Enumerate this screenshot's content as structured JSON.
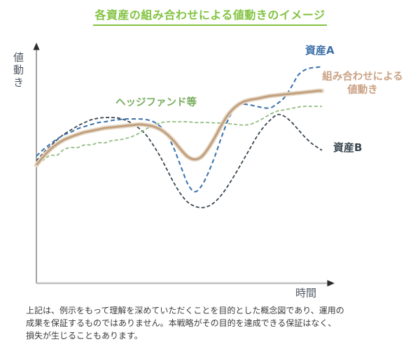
{
  "title": {
    "text": "各資産の組み合わせによる値動きのイメージ",
    "color": "#82C341"
  },
  "axes": {
    "y_label": "値動き",
    "x_label": "時間"
  },
  "series_labels": {
    "asset_a": {
      "text": "資産A",
      "color": "#3D6FA8"
    },
    "combination": {
      "text": "組み合わせによる\n値動き",
      "color": "#C9A284"
    },
    "hedge": {
      "text": "ヘッジファンド等",
      "color": "#79AC5F"
    },
    "asset_b": {
      "text": "資産B",
      "color": "#3A4650"
    }
  },
  "disclaimer": "上記は、例示をもって理解を深めていただくことを目的とした概念図であり、運用の\n成果を保証するものではありません。本戦略がその目的を達成できる保証はなく、\n損失が生じることもあります。",
  "chart_data": {
    "type": "line",
    "title": "各資産の組み合わせによる値動きのイメージ",
    "xlabel": "時間",
    "ylabel": "値動き",
    "x_range": [
      0,
      100
    ],
    "y_range": [
      0,
      100
    ],
    "grid": false,
    "legend_position": "inline-labels",
    "x": [
      0,
      2.4,
      4.8,
      7.2,
      9.6,
      12,
      14.5,
      16.9,
      19.3,
      21.7,
      24.1,
      26.5,
      28.9,
      31.3,
      33.7,
      36.1,
      38.6,
      41,
      43.4,
      45.8,
      48.2,
      50.6,
      53,
      55.4,
      57.8,
      60.2,
      62.7,
      65.1,
      67.5,
      69.9,
      72.3,
      74.7,
      77.1,
      79.5,
      82,
      84.4,
      86.7,
      89.2,
      91.6,
      94,
      96.4,
      98.8,
      100
    ],
    "series": [
      {
        "key": "asset-b",
        "name": "資産B",
        "color": "#39454F",
        "style": "dashed",
        "dash": "5 3",
        "width": 1.8,
        "values": [
          51.5,
          54.7,
          57.6,
          60.3,
          62.6,
          64.4,
          66.2,
          67.6,
          68.8,
          69.4,
          69.7,
          69.7,
          69.4,
          68.5,
          67.1,
          65,
          62.1,
          57.9,
          53.2,
          47.6,
          42.1,
          37.4,
          34.1,
          32.4,
          31.8,
          32.4,
          34.4,
          37.6,
          41.8,
          46.5,
          51.5,
          56.5,
          61.5,
          65.6,
          68.8,
          70.9,
          70.3,
          67.9,
          64.7,
          61.5,
          58.8,
          56.8,
          55.9
        ]
      },
      {
        "key": "hedge-fund",
        "name": "ヘッジファンド等",
        "color": "#92BC81",
        "style": "dashed",
        "dash": "5 3",
        "width": 1.8,
        "values": [
          50.6,
          51.8,
          53.8,
          53.8,
          56.2,
          57.1,
          57.1,
          58.2,
          58.2,
          59.1,
          59.1,
          60,
          60.3,
          60.9,
          61.8,
          63.2,
          65,
          66.5,
          67.4,
          67.9,
          67.9,
          67.9,
          67.9,
          67.6,
          67.6,
          67.6,
          67.4,
          67.4,
          67.1,
          66.8,
          66.5,
          66.8,
          67.9,
          69.4,
          71.2,
          72.4,
          72.9,
          73.5,
          74.1,
          74.4,
          74.4,
          74.4,
          74.4
        ]
      },
      {
        "key": "asset-a",
        "name": "資産A",
        "color": "#3E74AE",
        "style": "dashed",
        "dash": "6 4",
        "width": 2.1,
        "values": [
          53.5,
          56.2,
          58.5,
          60.6,
          62.4,
          63.5,
          65,
          65.9,
          66.8,
          67.6,
          67.9,
          68.5,
          68.8,
          69.1,
          69.1,
          69.1,
          68.8,
          67.9,
          65.9,
          62.4,
          56.5,
          49.1,
          41.8,
          38.5,
          40.9,
          46.5,
          54.1,
          62.4,
          69.7,
          74.4,
          75.3,
          75,
          74.4,
          73.8,
          73.8,
          75.6,
          77.9,
          82.4,
          87.4,
          89.7,
          90.6,
          90.9,
          91
        ]
      },
      {
        "key": "combination",
        "name": "組み合わせによる値動き",
        "color": "#C1A07F",
        "style": "solid",
        "dash": "",
        "width": 3,
        "halo": "#E6D9C7",
        "halo_width": 6.5,
        "values": [
          49.7,
          53.2,
          56.2,
          58.5,
          60.3,
          61.5,
          62.6,
          63.5,
          64.1,
          64.7,
          65.3,
          65.6,
          65.9,
          66.2,
          66.5,
          66.8,
          66.5,
          65.9,
          64.7,
          62.6,
          59.7,
          56.2,
          53.2,
          52.1,
          53.2,
          56.8,
          61.8,
          67.1,
          71.5,
          74.4,
          76.2,
          77.1,
          77.6,
          78.2,
          78.8,
          79.1,
          79.4,
          79.7,
          80,
          80.3,
          80.6,
          80.9,
          80.9
        ]
      }
    ]
  }
}
